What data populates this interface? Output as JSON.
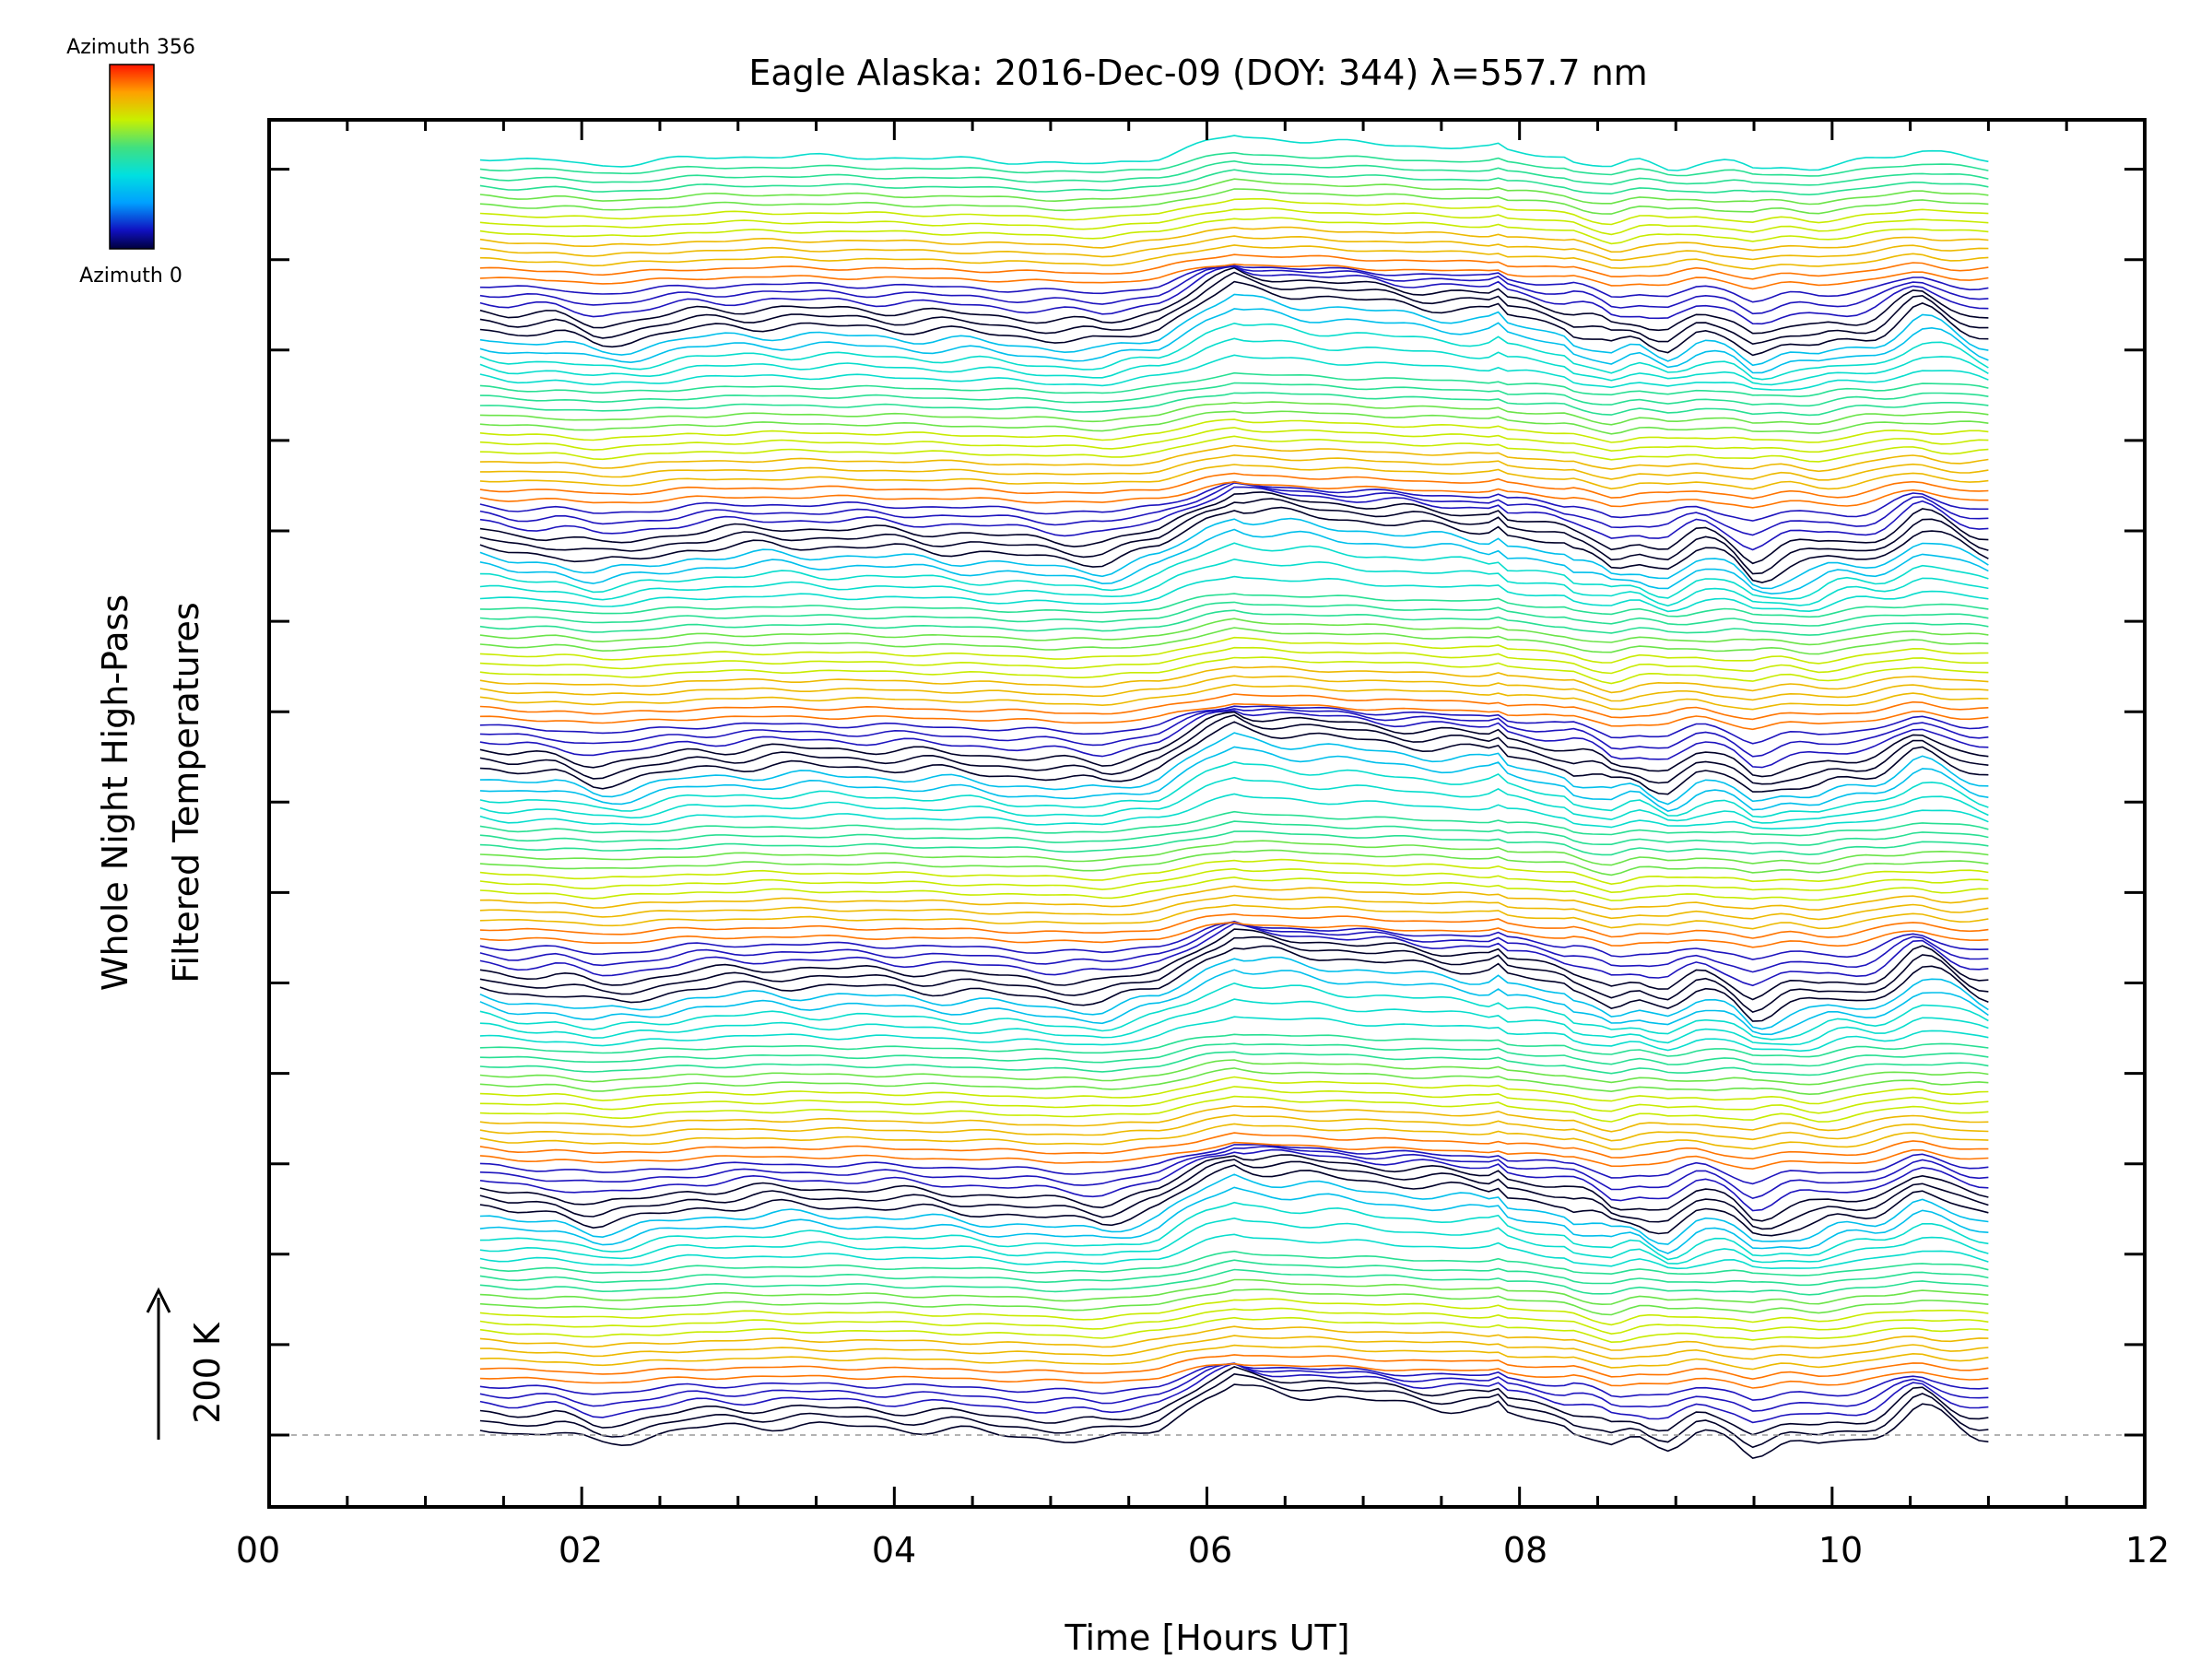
{
  "chart_data": {
    "type": "line",
    "title": "Eagle Alaska: 2016-Dec-09 (DOY: 344) λ=557.7 nm",
    "xlabel": "Time [Hours UT]",
    "ylabel_line1": "Whole Night High-Pass",
    "ylabel_line2": "Filtered Temperatures",
    "scale_label": "200 K",
    "xlim": [
      0,
      12
    ],
    "x_ticks": [
      "00",
      "02",
      "04",
      "06",
      "08",
      "10",
      "12"
    ],
    "x_tick_values": [
      0,
      2,
      4,
      6,
      8,
      10,
      12
    ],
    "colorbar": {
      "top_label": "Azimuth 356",
      "bottom_label": "Azimuth 0",
      "range": [
        0,
        356
      ]
    },
    "stacked_traces": {
      "count": 140,
      "period": 24,
      "x_start": 1.35,
      "x_end": 11.0,
      "baseline_dashed": true,
      "grid": false,
      "profile_x": [
        1.35,
        1.55,
        1.85,
        2.1,
        2.3,
        2.7,
        3.2,
        3.8,
        4.5,
        5.0,
        5.35,
        5.7,
        6.0,
        6.18,
        6.25,
        7.4,
        7.8,
        7.85,
        7.9,
        8.05,
        8.3,
        8.6,
        8.75,
        8.95,
        9.15,
        9.35,
        9.5,
        9.7,
        9.9,
        10.1,
        10.3,
        10.55,
        10.75,
        10.85,
        11.0
      ],
      "profile_y": [
        10,
        2,
        2,
        -10,
        -6,
        8,
        12,
        10,
        4,
        -4,
        -8,
        10,
        45,
        60,
        55,
        35,
        30,
        40,
        25,
        20,
        10,
        -18,
        -5,
        -12,
        2,
        -6,
        -22,
        -10,
        -15,
        -5,
        5,
        28,
        15,
        10,
        5
      ],
      "sample_colors": [
        "#000000",
        "#1a0a80",
        "#2828e0",
        "#ff3c00",
        "#ffb400",
        "#d0e800",
        "#50e050",
        "#00d0d0"
      ]
    }
  }
}
